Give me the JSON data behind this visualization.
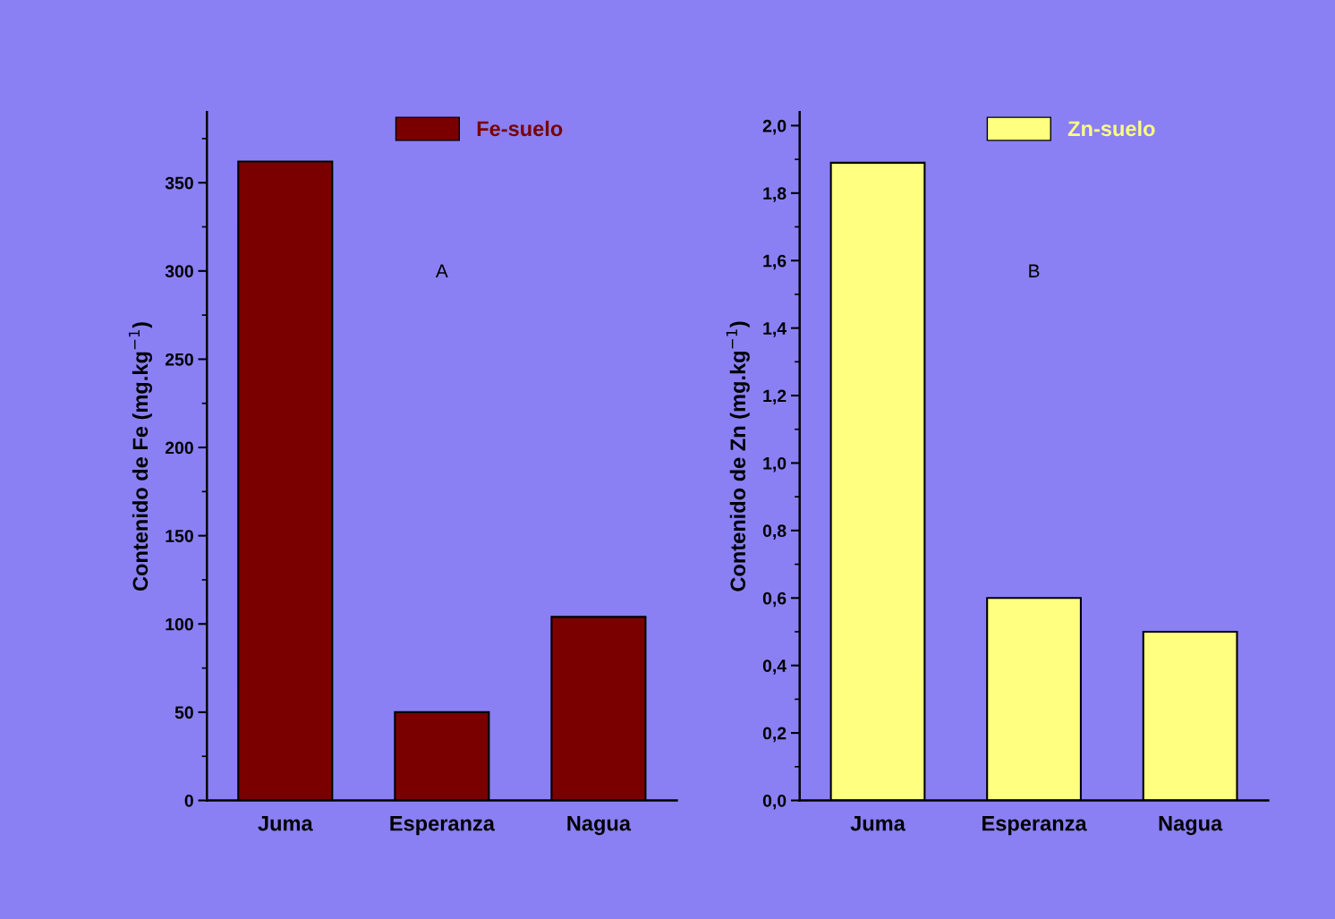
{
  "chart_data": [
    {
      "type": "bar",
      "categories": [
        "Juma",
        "Esperanza",
        "Nagua"
      ],
      "ylabel": "Contenido de Fe (mg.kg$^{−1}$)",
      "ylim": [
        0,
        390
      ],
      "yticks": [
        0,
        50,
        100,
        150,
        200,
        250,
        300,
        350
      ],
      "legend": "top",
      "annotations": [
        "A"
      ],
      "series": [
        {
          "name": "Fe-suelo",
          "color": "#7a0000",
          "values": [
            362,
            50,
            104
          ]
        }
      ]
    },
    {
      "type": "bar",
      "categories": [
        "Juma",
        "Esperanza",
        "Nagua"
      ],
      "ylabel": "Contenido de Zn (mg.kg$^{−1}$)",
      "ylim": [
        0,
        2.04
      ],
      "yticks": [
        {
          "value": 0,
          "label": "0,0"
        },
        {
          "value": 0.2,
          "label": "0,2"
        },
        {
          "value": 0.4,
          "label": "0,4"
        },
        {
          "value": 0.6,
          "label": "0,6"
        },
        {
          "value": 0.8,
          "label": "0,8"
        },
        {
          "value": 1.0,
          "label": "1,0"
        },
        {
          "value": 1.2,
          "label": "1,2"
        },
        {
          "value": 1.4,
          "label": "1,4"
        },
        {
          "value": 1.6,
          "label": "1,6"
        },
        {
          "value": 1.8,
          "label": "1,8"
        },
        {
          "value": 2.0,
          "label": "2,0"
        }
      ],
      "legend": "top",
      "annotations": [
        "B"
      ],
      "series": [
        {
          "name": "Zn-suelo",
          "color": "#ffff80",
          "values": [
            1.89,
            0.6,
            0.5
          ]
        }
      ]
    }
  ]
}
